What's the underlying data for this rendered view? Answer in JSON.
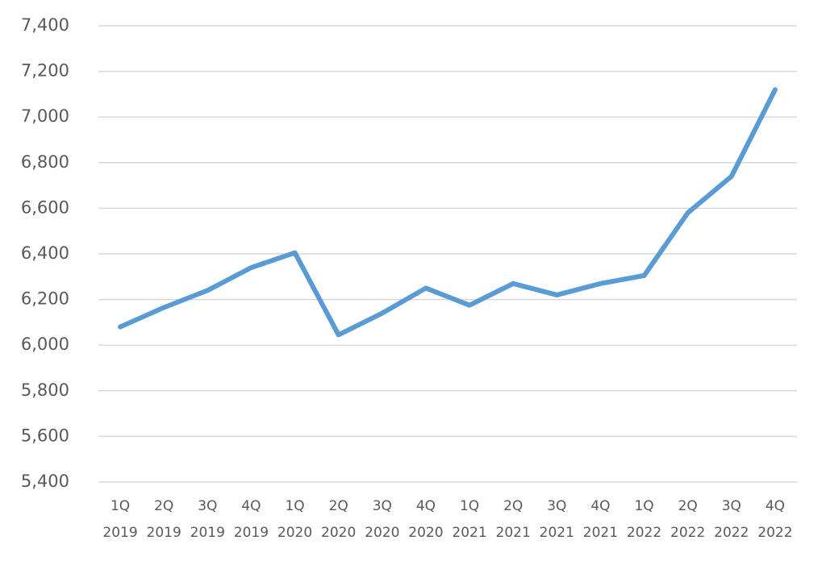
{
  "chart_data": {
    "type": "line",
    "categories": [
      [
        "1Q",
        "2019"
      ],
      [
        "2Q",
        "2019"
      ],
      [
        "3Q",
        "2019"
      ],
      [
        "4Q",
        "2019"
      ],
      [
        "1Q",
        "2020"
      ],
      [
        "2Q",
        "2020"
      ],
      [
        "3Q",
        "2020"
      ],
      [
        "4Q",
        "2020"
      ],
      [
        "1Q",
        "2021"
      ],
      [
        "2Q",
        "2021"
      ],
      [
        "3Q",
        "2021"
      ],
      [
        "4Q",
        "2021"
      ],
      [
        "1Q",
        "2022"
      ],
      [
        "2Q",
        "2022"
      ],
      [
        "3Q",
        "2022"
      ],
      [
        "4Q",
        "2022"
      ]
    ],
    "values": [
      6080,
      6165,
      6240,
      6340,
      6405,
      6045,
      6140,
      6250,
      6175,
      6270,
      6220,
      6270,
      6305,
      6580,
      6740,
      7120
    ],
    "color": "#5b9bd5",
    "ylim": [
      5400,
      7400
    ],
    "yticks": [
      {
        "value": 5400,
        "label": "5,400"
      },
      {
        "value": 5600,
        "label": "5,600"
      },
      {
        "value": 5800,
        "label": "5,800"
      },
      {
        "value": 6000,
        "label": "6,000"
      },
      {
        "value": 6200,
        "label": "6,200"
      },
      {
        "value": 6400,
        "label": "6,400"
      },
      {
        "value": 6600,
        "label": "6,600"
      },
      {
        "value": 6800,
        "label": "6,800"
      },
      {
        "value": 7000,
        "label": "7,000"
      },
      {
        "value": 7200,
        "label": "7,200"
      },
      {
        "value": 7400,
        "label": "7,400"
      }
    ],
    "grid": true
  }
}
